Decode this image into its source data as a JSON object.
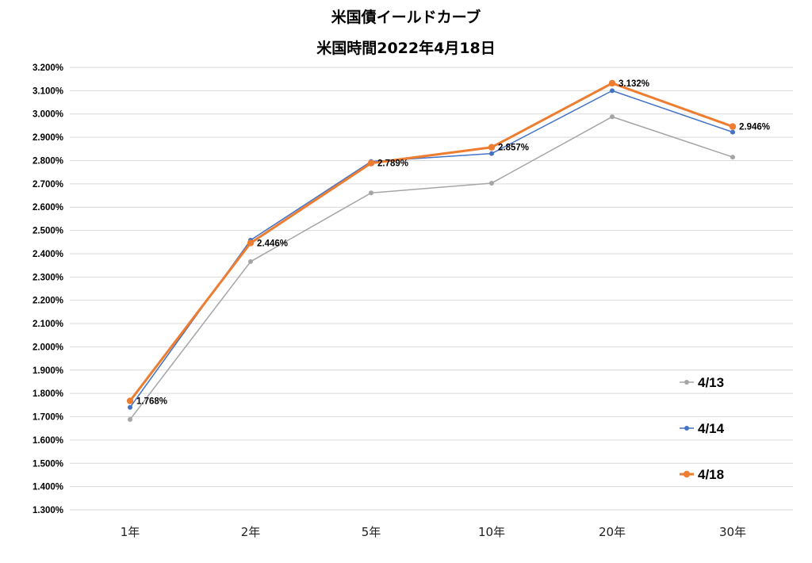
{
  "chart_data": {
    "type": "line",
    "title": "米国債イールドカーブ",
    "subtitle": "米国時間2022年4月18日",
    "categories": [
      "1年",
      "2年",
      "5年",
      "10年",
      "20年",
      "30年"
    ],
    "ylim": [
      1.3,
      3.2
    ],
    "y_tick_step": 0.1,
    "y_tick_format": "percent_3dp",
    "grid": true,
    "legend_position": "bottom-right",
    "series": [
      {
        "name": "4/13",
        "color": "#a5a5a5",
        "values": [
          1.688,
          2.366,
          2.661,
          2.703,
          2.988,
          2.815
        ]
      },
      {
        "name": "4/14",
        "color": "#4472c4",
        "values": [
          1.74,
          2.458,
          2.796,
          2.83,
          3.1,
          2.922
        ]
      },
      {
        "name": "4/18",
        "color": "#ed7d31",
        "values": [
          1.768,
          2.446,
          2.789,
          2.857,
          3.132,
          2.946
        ]
      }
    ],
    "data_labels": [
      "1.768%",
      "2.446%",
      "2.789%",
      "2.857%",
      "3.132%",
      "2.946%"
    ]
  }
}
